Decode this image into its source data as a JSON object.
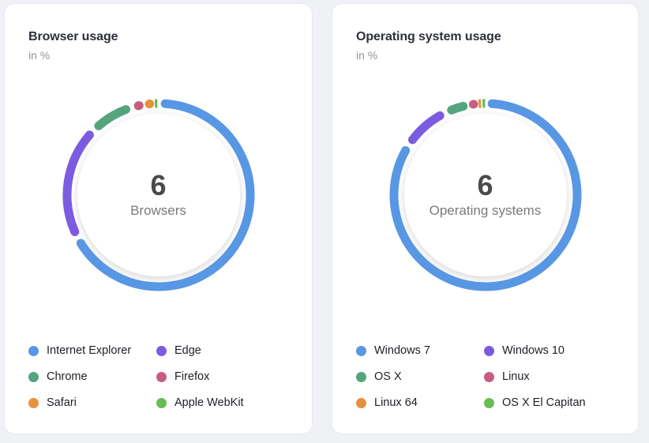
{
  "page_background": "#f0f1f5",
  "chart_data": [
    {
      "type": "pie",
      "variant": "donut",
      "title": "Browser usage",
      "subtitle": "in %",
      "center_value": "6",
      "center_label": "Browsers",
      "legend_position": "bottom",
      "legend_columns": 2,
      "labels": [
        "Internet Explorer",
        "Edge",
        "Chrome",
        "Firefox",
        "Safari",
        "Apple WebKit"
      ],
      "values": [
        67.3,
        20.2,
        7.8,
        2.4,
        1.4,
        0.9
      ],
      "colors": [
        "#5897e4",
        "#7b5ce0",
        "#54a57e",
        "#c75e80",
        "#e6913c",
        "#67bd53"
      ]
    },
    {
      "type": "pie",
      "variant": "donut",
      "title": "Operating system usage",
      "subtitle": "in %",
      "center_value": "6",
      "center_label": "Operating systems",
      "legend_position": "bottom",
      "legend_columns": 2,
      "labels": [
        "Windows 7",
        "Windows 10",
        "OS X",
        "Linux",
        "Linux 64",
        "OS X El Capitan"
      ],
      "values": [
        84.2,
        8.6,
        4.4,
        1.4,
        0.8,
        0.6
      ],
      "colors": [
        "#5897e4",
        "#7b5ce0",
        "#54a57e",
        "#c75e80",
        "#e6913c",
        "#67bd53"
      ]
    }
  ]
}
